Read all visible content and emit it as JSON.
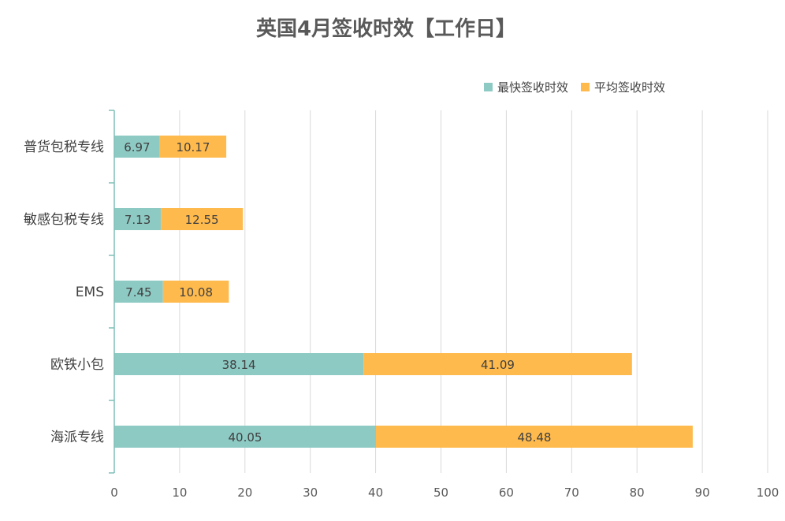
{
  "chart_data": {
    "type": "bar",
    "orientation": "horizontal",
    "stacked": true,
    "title": "英国4月签收时效【工作日】",
    "categories": [
      "普货包税专线",
      "敏感包税专线",
      "EMS",
      "欧铁小包",
      "海派专线"
    ],
    "series": [
      {
        "name": "最快签收时效",
        "color": "#8ECAC4",
        "values": [
          6.97,
          7.13,
          7.45,
          38.14,
          40.05
        ]
      },
      {
        "name": "平均签收时效",
        "color": "#FFBA4D",
        "values": [
          10.17,
          12.55,
          10.08,
          41.09,
          48.48
        ]
      }
    ],
    "xlim": [
      0,
      100
    ],
    "xticks": [
      0,
      10,
      20,
      30,
      40,
      50,
      60,
      70,
      80,
      90,
      100
    ],
    "grid": true,
    "legend": "top-right",
    "data_labels": true,
    "colors": {
      "title": "#595959",
      "text": "#404040",
      "grid": "#D9D9D9",
      "axis": "#7FBFB8"
    }
  }
}
